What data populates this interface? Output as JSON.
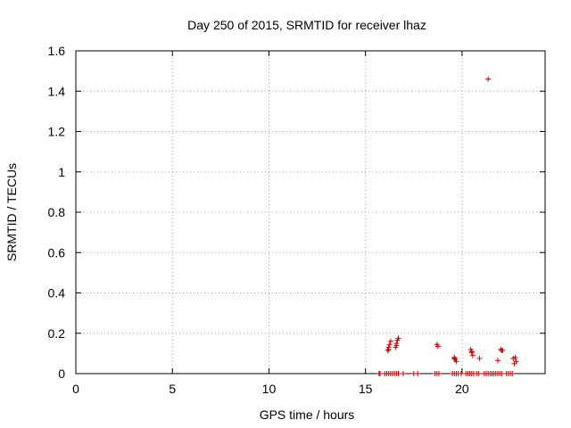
{
  "chart_data": {
    "type": "scatter",
    "title": "Day 250 of 2015, SRMTID for receiver lhaz",
    "xlabel": "GPS time / hours",
    "ylabel": "SRMTID / TECUs",
    "xlim": [
      0,
      24.3
    ],
    "ylim": [
      0,
      1.6
    ],
    "xticks": [
      0,
      5,
      10,
      15,
      20
    ],
    "xtick_labels": [
      "0",
      "5",
      "10",
      "15",
      "20"
    ],
    "yticks": [
      0,
      0.2,
      0.4,
      0.6,
      0.8,
      1.0,
      1.2,
      1.4,
      1.6
    ],
    "ytick_labels": [
      "0",
      "0.2",
      "0.4",
      "0.6",
      "0.8",
      "1",
      "1.2",
      "1.4",
      "1.6"
    ],
    "grid": true,
    "marker": "+",
    "color": "#cc0000",
    "series": [
      {
        "name": "SRMTID",
        "points": [
          [
            16.15,
            0.115
          ],
          [
            16.2,
            0.13
          ],
          [
            16.25,
            0.145
          ],
          [
            16.3,
            0.16
          ],
          [
            16.2,
            0.12
          ],
          [
            16.55,
            0.13
          ],
          [
            16.6,
            0.15
          ],
          [
            16.65,
            0.165
          ],
          [
            16.7,
            0.175
          ],
          [
            16.6,
            0.14
          ],
          [
            18.7,
            0.145
          ],
          [
            18.75,
            0.135
          ],
          [
            19.6,
            0.08
          ],
          [
            19.65,
            0.07
          ],
          [
            19.7,
            0.06
          ],
          [
            19.6,
            0.075
          ],
          [
            20.45,
            0.12
          ],
          [
            20.5,
            0.105
          ],
          [
            20.55,
            0.09
          ],
          [
            20.5,
            0.11
          ],
          [
            20.9,
            0.075
          ],
          [
            21.35,
            1.46
          ],
          [
            21.85,
            0.065
          ],
          [
            22.0,
            0.12
          ],
          [
            22.05,
            0.115
          ],
          [
            22.1,
            0.115
          ],
          [
            22.65,
            0.075
          ],
          [
            22.7,
            0.05
          ],
          [
            22.75,
            0.08
          ],
          [
            22.8,
            0.06
          ],
          [
            15.7,
            0.0
          ],
          [
            15.75,
            0.0
          ],
          [
            16.0,
            0.0
          ],
          [
            16.1,
            0.0
          ],
          [
            16.2,
            0.0
          ],
          [
            16.3,
            0.0
          ],
          [
            16.4,
            0.0
          ],
          [
            16.5,
            0.0
          ],
          [
            16.6,
            0.0
          ],
          [
            16.7,
            0.0
          ],
          [
            16.95,
            0.0
          ],
          [
            17.5,
            0.0
          ],
          [
            17.7,
            0.0
          ],
          [
            18.6,
            0.0
          ],
          [
            18.7,
            0.0
          ],
          [
            18.8,
            0.0
          ],
          [
            19.5,
            0.0
          ],
          [
            19.6,
            0.0
          ],
          [
            19.7,
            0.0
          ],
          [
            19.8,
            0.0
          ],
          [
            19.95,
            0.0
          ],
          [
            20.2,
            0.0
          ],
          [
            20.3,
            0.0
          ],
          [
            20.4,
            0.0
          ],
          [
            20.5,
            0.0
          ],
          [
            20.6,
            0.0
          ],
          [
            20.75,
            0.0
          ],
          [
            20.85,
            0.0
          ],
          [
            21.15,
            0.0
          ],
          [
            21.25,
            0.0
          ],
          [
            21.35,
            0.0
          ],
          [
            21.45,
            0.0
          ],
          [
            21.55,
            0.0
          ],
          [
            21.65,
            0.0
          ],
          [
            21.75,
            0.0
          ],
          [
            21.85,
            0.0
          ],
          [
            21.95,
            0.0
          ],
          [
            22.05,
            0.0
          ],
          [
            22.3,
            0.0
          ],
          [
            22.4,
            0.0
          ],
          [
            22.5,
            0.0
          ],
          [
            22.6,
            0.0
          ]
        ]
      }
    ]
  }
}
